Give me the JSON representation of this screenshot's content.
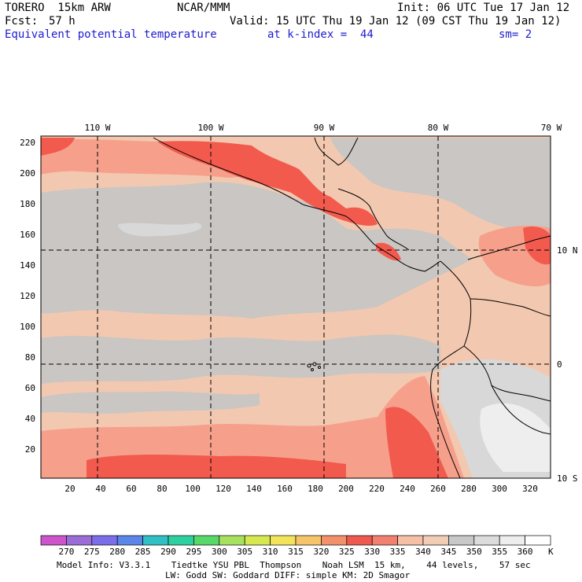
{
  "header": {
    "model_line": "TORERO  15km ARW",
    "center_line": "NCAR/MMM",
    "init_line": "Init: 06 UTC Tue 17 Jan 12",
    "fcst_label": "Fcst:",
    "fcst_value": "57 h",
    "valid_line": "Valid: 15 UTC Thu 19 Jan 12 (09 CST Thu 19 Jan 12)",
    "field_title": "Equivalent potential temperature",
    "level": "at k-index =  44",
    "smoothing": "sm= 2"
  },
  "axes": {
    "top_lon_labels": [
      "110 W",
      "100 W",
      "90 W",
      "80 W",
      "70 W"
    ],
    "right_lat_labels": [
      "10 N",
      "0",
      "10 S"
    ],
    "left_y_ticks": [
      "220",
      "200",
      "180",
      "160",
      "140",
      "120",
      "100",
      "80",
      "60",
      "40",
      "20"
    ],
    "bottom_x_ticks": [
      "20",
      "40",
      "60",
      "80",
      "100",
      "120",
      "140",
      "160",
      "180",
      "200",
      "220",
      "240",
      "260",
      "280",
      "300",
      "320"
    ]
  },
  "colorbar": {
    "unit": "K",
    "labels": [
      "270",
      "275",
      "280",
      "285",
      "290",
      "295",
      "300",
      "305",
      "310",
      "315",
      "320",
      "325",
      "330",
      "335",
      "340",
      "345",
      "350",
      "355",
      "360"
    ],
    "colors": [
      "#cc55cc",
      "#9a6ed6",
      "#7b6ee8",
      "#5a86e8",
      "#2fbfc4",
      "#2fd0a0",
      "#59d86a",
      "#a8e060",
      "#d6e84f",
      "#f2e45a",
      "#f6c46a",
      "#f2926a",
      "#ee5a4e",
      "#f28070",
      "#f5c0a6",
      "#f2cdb5",
      "#c8c8c8",
      "#dcdcdc",
      "#eeeeee",
      "#ffffff"
    ]
  },
  "footer": {
    "line1": "Model Info: V3.3.1    Tiedtke YSU PBL  Thompson    Noah LSM  15 km,    44 levels,    57 sec",
    "line2": "LW: Godd SW: Goddard DIFF: simple KM: 2D Smagor"
  },
  "colors": {
    "c330": "#f25a4e",
    "c335": "#f6a08c",
    "c340": "#f3c8b0",
    "c345": "#c9c6c3",
    "c350": "#d8d8d8",
    "c355": "#eeeeee"
  }
}
